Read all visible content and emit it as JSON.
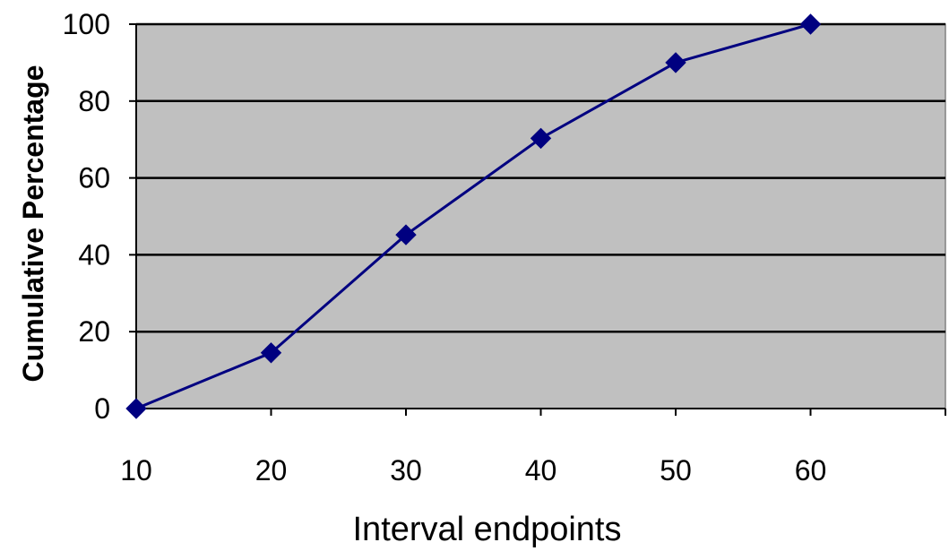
{
  "chart_data": {
    "type": "line",
    "title": "",
    "xlabel": "Interval endpoints",
    "ylabel": "Cumulative Percentage",
    "x": [
      10,
      20,
      30,
      40,
      50,
      60
    ],
    "series": [
      {
        "values": [
          0,
          14.5,
          45.2,
          70.3,
          90,
          100
        ]
      }
    ],
    "x_ticks": [
      "10",
      "20",
      "30",
      "40",
      "50",
      "60"
    ],
    "y_ticks": [
      "0",
      "20",
      "40",
      "60",
      "80",
      "100"
    ],
    "xlim": [
      10,
      70
    ],
    "ylim": [
      0,
      100
    ],
    "grid": true,
    "legend": "none",
    "colors": {
      "plot_background": "#c0c0c0",
      "series_line": "#000080",
      "marker": "#000080",
      "gridline": "#000000"
    },
    "marker": "diamond-icon"
  }
}
